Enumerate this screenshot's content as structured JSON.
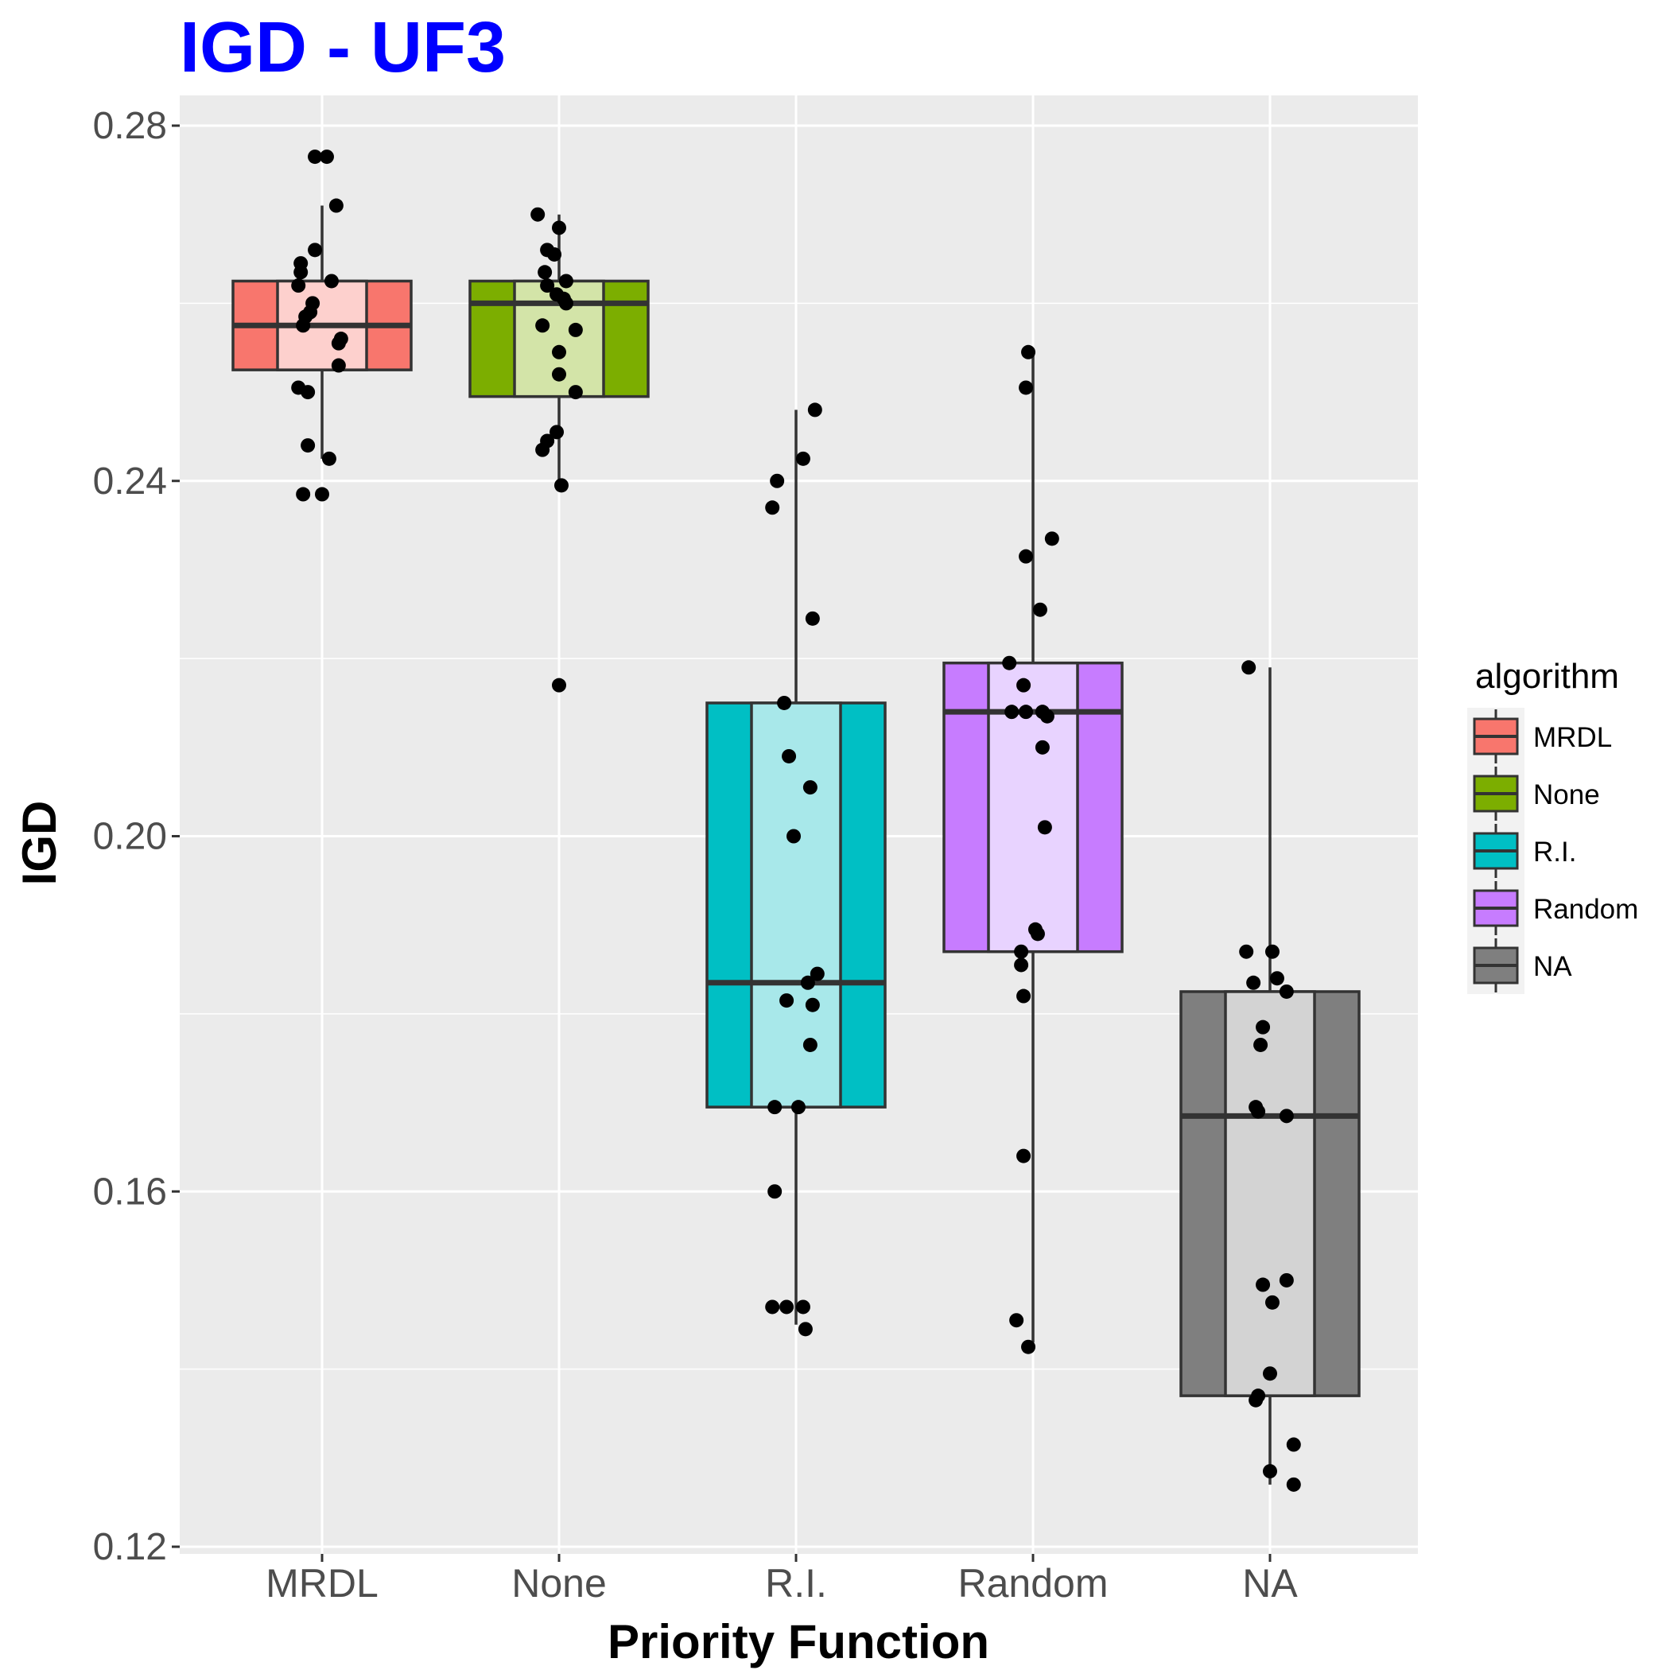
{
  "chart_data": {
    "type": "boxplot",
    "title": "IGD - UF3",
    "xlabel": "Priority Function",
    "ylabel": "IGD",
    "ylim": [
      0.12,
      0.28
    ],
    "yticks": [
      "0.12",
      "0.16",
      "0.20",
      "0.24",
      "0.28"
    ],
    "grid": true,
    "categories": [
      "MRDL",
      "None",
      "R.I.",
      "Random",
      "NA"
    ],
    "legend": {
      "title": "algorithm",
      "position": "right",
      "items": [
        "MRDL",
        "None",
        "R.I.",
        "Random",
        "NA"
      ]
    },
    "series": [
      {
        "category": "MRDL",
        "color": "#f8766d",
        "light_color": "#fdd0cd",
        "box": {
          "whisker_low": 0.2425,
          "q1": 0.2525,
          "median": 0.2575,
          "q3": 0.2625,
          "whisker_high": 0.271
        },
        "points": [
          [
            -0.03,
            0.2765
          ],
          [
            0.02,
            0.2765
          ],
          [
            0.06,
            0.271
          ],
          [
            -0.03,
            0.266
          ],
          [
            -0.09,
            0.2645
          ],
          [
            -0.09,
            0.2635
          ],
          [
            0.04,
            0.2625
          ],
          [
            -0.1,
            0.262
          ],
          [
            -0.04,
            0.26
          ],
          [
            -0.05,
            0.259
          ],
          [
            -0.07,
            0.2585
          ],
          [
            -0.08,
            0.2575
          ],
          [
            0.08,
            0.256
          ],
          [
            0.07,
            0.2555
          ],
          [
            0.07,
            0.253
          ],
          [
            -0.1,
            0.2505
          ],
          [
            -0.06,
            0.25
          ],
          [
            -0.06,
            0.244
          ],
          [
            0.03,
            0.2425
          ],
          [
            -0.08,
            0.2385
          ],
          [
            0.0,
            0.2385
          ]
        ]
      },
      {
        "category": "None",
        "color": "#7cae00",
        "light_color": "#d3e4a8",
        "box": {
          "whisker_low": 0.2395,
          "q1": 0.2495,
          "median": 0.26,
          "q3": 0.2625,
          "whisker_high": 0.27
        },
        "points": [
          [
            -0.09,
            0.27
          ],
          [
            0.0,
            0.2685
          ],
          [
            -0.05,
            0.266
          ],
          [
            -0.02,
            0.2655
          ],
          [
            -0.06,
            0.2635
          ],
          [
            0.03,
            0.2625
          ],
          [
            -0.05,
            0.262
          ],
          [
            -0.01,
            0.261
          ],
          [
            0.02,
            0.2605
          ],
          [
            0.03,
            0.26
          ],
          [
            -0.07,
            0.2575
          ],
          [
            0.07,
            0.257
          ],
          [
            0.0,
            0.2545
          ],
          [
            0.0,
            0.252
          ],
          [
            0.07,
            0.25
          ],
          [
            -0.01,
            0.2455
          ],
          [
            -0.05,
            0.2445
          ],
          [
            -0.07,
            0.2435
          ],
          [
            0.01,
            0.2395
          ],
          [
            0.0,
            0.217
          ]
        ]
      },
      {
        "category": "R.I.",
        "color": "#00bfc4",
        "light_color": "#a8e8ea",
        "box": {
          "whisker_low": 0.145,
          "q1": 0.1695,
          "median": 0.1835,
          "q3": 0.215,
          "whisker_high": 0.248
        },
        "points": [
          [
            0.08,
            0.248
          ],
          [
            0.03,
            0.2425
          ],
          [
            -0.08,
            0.24
          ],
          [
            -0.1,
            0.237
          ],
          [
            0.07,
            0.2245
          ],
          [
            -0.05,
            0.215
          ],
          [
            -0.03,
            0.209
          ],
          [
            0.06,
            0.2055
          ],
          [
            -0.01,
            0.2
          ],
          [
            0.09,
            0.1845
          ],
          [
            0.05,
            0.1835
          ],
          [
            -0.04,
            0.1815
          ],
          [
            0.07,
            0.181
          ],
          [
            0.06,
            0.1765
          ],
          [
            -0.09,
            0.1695
          ],
          [
            0.01,
            0.1695
          ],
          [
            -0.09,
            0.16
          ],
          [
            -0.1,
            0.147
          ],
          [
            -0.04,
            0.147
          ],
          [
            0.03,
            0.147
          ],
          [
            0.04,
            0.1445
          ]
        ]
      },
      {
        "category": "Random",
        "color": "#c77cff",
        "light_color": "#e8d3ff",
        "box": {
          "whisker_low": 0.143,
          "q1": 0.187,
          "median": 0.214,
          "q3": 0.2195,
          "whisker_high": 0.2545
        },
        "points": [
          [
            -0.02,
            0.2545
          ],
          [
            -0.03,
            0.2505
          ],
          [
            0.08,
            0.2335
          ],
          [
            -0.03,
            0.2315
          ],
          [
            0.03,
            0.2255
          ],
          [
            -0.1,
            0.2195
          ],
          [
            -0.04,
            0.217
          ],
          [
            -0.09,
            0.214
          ],
          [
            -0.03,
            0.214
          ],
          [
            0.04,
            0.214
          ],
          [
            0.06,
            0.2135
          ],
          [
            0.04,
            0.21
          ],
          [
            0.05,
            0.201
          ],
          [
            0.01,
            0.1895
          ],
          [
            0.02,
            0.189
          ],
          [
            -0.05,
            0.187
          ],
          [
            -0.05,
            0.1855
          ],
          [
            -0.04,
            0.182
          ],
          [
            -0.04,
            0.164
          ],
          [
            -0.07,
            0.1455
          ],
          [
            -0.02,
            0.1425
          ]
        ]
      },
      {
        "category": "NA",
        "color": "#7f7f7f",
        "light_color": "#d3d3d3",
        "box": {
          "whisker_low": 0.127,
          "q1": 0.137,
          "median": 0.1685,
          "q3": 0.1825,
          "whisker_high": 0.219
        },
        "points": [
          [
            -0.09,
            0.219
          ],
          [
            -0.1,
            0.187
          ],
          [
            0.01,
            0.187
          ],
          [
            -0.07,
            0.1835
          ],
          [
            0.03,
            0.184
          ],
          [
            0.07,
            0.1825
          ],
          [
            -0.03,
            0.1785
          ],
          [
            -0.04,
            0.1765
          ],
          [
            -0.06,
            0.1695
          ],
          [
            -0.05,
            0.169
          ],
          [
            0.07,
            0.1685
          ],
          [
            -0.03,
            0.1495
          ],
          [
            0.07,
            0.15
          ],
          [
            0.01,
            0.1475
          ],
          [
            0.0,
            0.1395
          ],
          [
            -0.05,
            0.137
          ],
          [
            -0.06,
            0.1365
          ],
          [
            0.1,
            0.1315
          ],
          [
            0.0,
            0.1285
          ],
          [
            0.1,
            0.127
          ]
        ]
      }
    ]
  }
}
